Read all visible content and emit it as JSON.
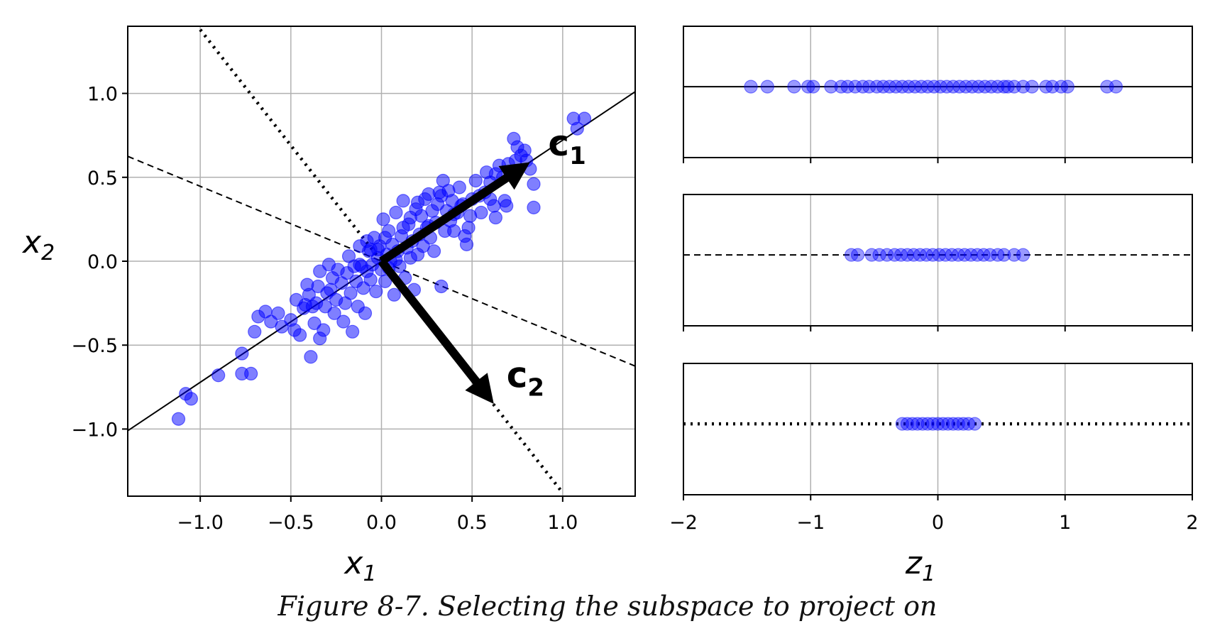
{
  "chart_data": [
    {
      "type": "scatter",
      "panel": "left",
      "xlabel": "x",
      "xlabel_sub": "1",
      "ylabel": "x",
      "ylabel_sub": "2",
      "xlim": [
        -1.4,
        1.4
      ],
      "ylim": [
        -1.4,
        1.4
      ],
      "xticks": [
        -1.0,
        -0.5,
        0.0,
        0.5,
        1.0
      ],
      "xtick_labels": [
        "−1.0",
        "−0.5",
        "0.0",
        "0.5",
        "1.0"
      ],
      "yticks": [
        1.0,
        0.5,
        0.0,
        -0.5,
        -1.0
      ],
      "ytick_labels": [
        "1.0",
        "0.5",
        "0.0",
        "−0.5",
        "−1.0"
      ],
      "grid": true,
      "point_color": "#0000ff",
      "points": [
        [
          -1.12,
          -0.94
        ],
        [
          -1.08,
          -0.79
        ],
        [
          -1.05,
          -0.82
        ],
        [
          -0.9,
          -0.68
        ],
        [
          -0.77,
          -0.67
        ],
        [
          -0.77,
          -0.55
        ],
        [
          -0.72,
          -0.67
        ],
        [
          -0.7,
          -0.42
        ],
        [
          -0.68,
          -0.33
        ],
        [
          -0.64,
          -0.3
        ],
        [
          -0.61,
          -0.36
        ],
        [
          -0.57,
          -0.31
        ],
        [
          -0.55,
          -0.39
        ],
        [
          -0.5,
          -0.35
        ],
        [
          -0.48,
          -0.41
        ],
        [
          -0.47,
          -0.23
        ],
        [
          -0.45,
          -0.44
        ],
        [
          -0.43,
          -0.28
        ],
        [
          -0.42,
          -0.26
        ],
        [
          -0.41,
          -0.14
        ],
        [
          -0.4,
          -0.2
        ],
        [
          -0.39,
          -0.57
        ],
        [
          -0.38,
          -0.27
        ],
        [
          -0.37,
          -0.37
        ],
        [
          -0.36,
          -0.25
        ],
        [
          -0.35,
          -0.15
        ],
        [
          -0.34,
          -0.46
        ],
        [
          -0.34,
          -0.06
        ],
        [
          -0.32,
          -0.41
        ],
        [
          -0.31,
          -0.27
        ],
        [
          -0.3,
          -0.19
        ],
        [
          -0.29,
          -0.02
        ],
        [
          -0.28,
          -0.17
        ],
        [
          -0.27,
          -0.1
        ],
        [
          -0.26,
          -0.31
        ],
        [
          -0.25,
          -0.23
        ],
        [
          -0.24,
          -0.05
        ],
        [
          -0.22,
          -0.13
        ],
        [
          -0.21,
          -0.36
        ],
        [
          -0.2,
          -0.25
        ],
        [
          -0.19,
          -0.07
        ],
        [
          -0.18,
          0.03
        ],
        [
          -0.17,
          -0.19
        ],
        [
          -0.16,
          -0.42
        ],
        [
          -0.15,
          -0.03
        ],
        [
          -0.14,
          -0.12
        ],
        [
          -0.13,
          -0.27
        ],
        [
          -0.12,
          0.09
        ],
        [
          -0.11,
          -0.03
        ],
        [
          -0.1,
          -0.16
        ],
        [
          -0.09,
          -0.31
        ],
        [
          -0.08,
          -0.06
        ],
        [
          -0.07,
          0.06
        ],
        [
          -0.06,
          -0.11
        ],
        [
          -0.05,
          -0.02
        ],
        [
          -0.04,
          0.14
        ],
        [
          -0.03,
          -0.18
        ],
        [
          -0.02,
          0.02
        ],
        [
          -0.01,
          0.09
        ],
        [
          0.0,
          -0.05
        ],
        [
          0.01,
          0.25
        ],
        [
          0.02,
          -0.12
        ],
        [
          0.03,
          0.04
        ],
        [
          0.04,
          0.18
        ],
        [
          0.05,
          0.0
        ],
        [
          0.06,
          0.1
        ],
        [
          0.07,
          -0.2
        ],
        [
          0.08,
          0.29
        ],
        [
          0.09,
          0.06
        ],
        [
          0.1,
          -0.03
        ],
        [
          0.11,
          0.15
        ],
        [
          0.12,
          0.36
        ],
        [
          0.13,
          -0.1
        ],
        [
          0.14,
          0.08
        ],
        [
          0.15,
          0.22
        ],
        [
          0.16,
          0.02
        ],
        [
          0.17,
          0.12
        ],
        [
          0.18,
          -0.17
        ],
        [
          0.19,
          0.31
        ],
        [
          0.2,
          0.04
        ],
        [
          0.21,
          0.16
        ],
        [
          0.22,
          0.27
        ],
        [
          0.23,
          0.09
        ],
        [
          0.24,
          0.37
        ],
        [
          0.25,
          0.2
        ],
        [
          0.26,
          0.4
        ],
        [
          0.27,
          0.14
        ],
        [
          0.28,
          0.3
        ],
        [
          0.29,
          0.06
        ],
        [
          0.3,
          0.23
        ],
        [
          0.31,
          0.34
        ],
        [
          0.32,
          0.41
        ],
        [
          0.33,
          -0.15
        ],
        [
          0.34,
          0.48
        ],
        [
          0.35,
          0.18
        ],
        [
          0.36,
          0.3
        ],
        [
          0.37,
          0.42
        ],
        [
          0.38,
          0.24
        ],
        [
          0.39,
          0.36
        ],
        [
          0.4,
          0.18
        ],
        [
          0.42,
          0.29
        ],
        [
          0.43,
          0.44
        ],
        [
          0.44,
          0.33
        ],
        [
          0.45,
          0.34
        ],
        [
          0.46,
          0.15
        ],
        [
          0.47,
          0.1
        ],
        [
          0.48,
          0.2
        ],
        [
          0.49,
          0.27
        ],
        [
          0.5,
          0.37
        ],
        [
          0.52,
          0.48
        ],
        [
          0.54,
          0.39
        ],
        [
          0.55,
          0.29
        ],
        [
          0.57,
          0.41
        ],
        [
          0.58,
          0.53
        ],
        [
          0.6,
          0.47
        ],
        [
          0.6,
          0.37
        ],
        [
          0.62,
          0.33
        ],
        [
          0.63,
          0.52
        ],
        [
          0.63,
          0.26
        ],
        [
          0.65,
          0.57
        ],
        [
          0.67,
          0.5
        ],
        [
          0.68,
          0.36
        ],
        [
          0.69,
          0.33
        ],
        [
          0.7,
          0.58
        ],
        [
          0.73,
          0.73
        ],
        [
          0.74,
          0.6
        ],
        [
          0.75,
          0.68
        ],
        [
          0.77,
          0.63
        ],
        [
          0.79,
          0.66
        ],
        [
          0.8,
          0.6
        ],
        [
          0.82,
          0.55
        ],
        [
          0.84,
          0.46
        ],
        [
          0.84,
          0.32
        ],
        [
          1.06,
          0.85
        ],
        [
          1.08,
          0.79
        ],
        [
          1.12,
          0.85
        ],
        [
          -0.06,
          0.07
        ],
        [
          0.02,
          0.14
        ],
        [
          0.08,
          0.01
        ],
        [
          0.12,
          0.2
        ],
        [
          -0.12,
          -0.02
        ],
        [
          0.16,
          0.26
        ],
        [
          0.2,
          0.35
        ],
        [
          0.26,
          0.21
        ],
        [
          0.33,
          0.39
        ],
        [
          0.4,
          0.28
        ],
        [
          -0.08,
          0.12
        ],
        [
          -0.02,
          0.07
        ],
        [
          0.04,
          -0.04
        ]
      ],
      "lines": [
        {
          "name": "c1-axis",
          "style": "solid",
          "from": [
            -1.4,
            -1.01
          ],
          "to": [
            1.4,
            1.01
          ]
        },
        {
          "name": "dashed-axis",
          "style": "dashed",
          "from": [
            -1.4,
            0.625
          ],
          "to": [
            1.4,
            -0.625
          ]
        },
        {
          "name": "c2-axis",
          "style": "dotted",
          "from": [
            -1.0,
            1.38
          ],
          "to": [
            1.0,
            -1.38
          ]
        }
      ],
      "arrows": [
        {
          "name": "c1",
          "label": "c",
          "sub": "1",
          "from": [
            0.0,
            0.0
          ],
          "to": [
            0.82,
            0.59
          ],
          "label_at": [
            0.92,
            0.63
          ]
        },
        {
          "name": "c2",
          "label": "c",
          "sub": "2",
          "from": [
            0.0,
            0.0
          ],
          "to": [
            0.62,
            -0.85
          ],
          "label_at": [
            0.69,
            -0.75
          ]
        }
      ]
    },
    {
      "type": "scatter",
      "panel": "right-top",
      "line_style": "solid",
      "xlim": [
        -2,
        2
      ],
      "xticks": [
        -2,
        -1,
        0,
        1,
        2
      ],
      "z_values": [
        -1.47,
        -1.34,
        -1.13,
        -1.02,
        -0.98,
        -0.84,
        -0.76,
        -0.71,
        -0.65,
        -0.59,
        -0.54,
        -0.48,
        -0.43,
        -0.38,
        -0.33,
        -0.28,
        -0.23,
        -0.18,
        -0.13,
        -0.08,
        -0.03,
        0.02,
        0.07,
        0.12,
        0.17,
        0.22,
        0.27,
        0.32,
        0.37,
        0.42,
        0.47,
        0.52,
        0.55,
        0.6,
        0.67,
        0.74,
        0.85,
        0.9,
        0.97,
        1.02,
        1.33,
        1.4
      ]
    },
    {
      "type": "scatter",
      "panel": "right-middle",
      "line_style": "dashed",
      "xlim": [
        -2,
        2
      ],
      "xticks": [
        -2,
        -1,
        0,
        1,
        2
      ],
      "z_values": [
        -0.68,
        -0.63,
        -0.52,
        -0.46,
        -0.4,
        -0.34,
        -0.29,
        -0.24,
        -0.19,
        -0.14,
        -0.09,
        -0.04,
        0.01,
        0.06,
        0.11,
        0.16,
        0.21,
        0.26,
        0.31,
        0.36,
        0.41,
        0.47,
        0.52,
        0.6,
        0.67
      ]
    },
    {
      "type": "scatter",
      "panel": "right-bottom",
      "line_style": "dotted",
      "xlim": [
        -2,
        2
      ],
      "xticks": [
        -2,
        -1,
        0,
        1,
        2
      ],
      "xtick_labels": [
        "−2",
        "−1",
        "0",
        "1",
        "2"
      ],
      "xlabel": "z",
      "xlabel_sub": "1",
      "z_values": [
        -0.28,
        -0.24,
        -0.2,
        -0.16,
        -0.12,
        -0.08,
        -0.04,
        0.0,
        0.04,
        0.08,
        0.12,
        0.16,
        0.2,
        0.24,
        0.29
      ]
    }
  ],
  "caption": "Figure 8-7. Selecting the subspace to project on"
}
